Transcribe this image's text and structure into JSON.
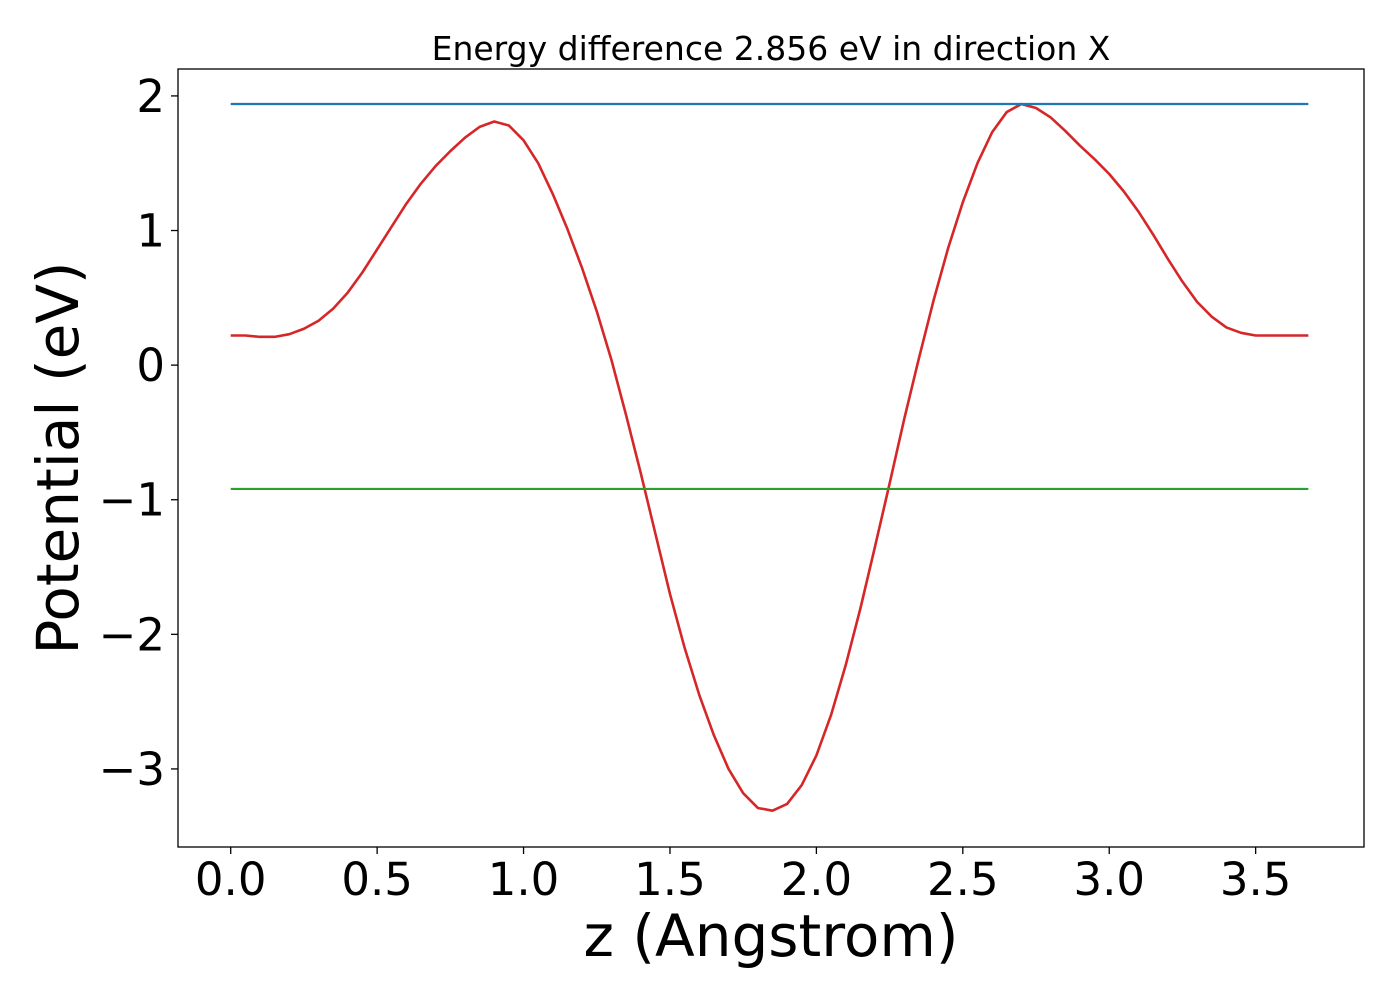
{
  "chart_data": {
    "type": "line",
    "title": "Energy difference 2.856 eV in direction X",
    "xlabel": "z (Angstrom)",
    "ylabel": "Potential (eV)",
    "xlim": [
      -0.18,
      3.87
    ],
    "ylim": [
      -3.58,
      2.2
    ],
    "xticks": [
      {
        "value": 0.0,
        "label": "0.0"
      },
      {
        "value": 0.5,
        "label": "0.5"
      },
      {
        "value": 1.0,
        "label": "1.0"
      },
      {
        "value": 1.5,
        "label": "1.5"
      },
      {
        "value": 2.0,
        "label": "2.0"
      },
      {
        "value": 2.5,
        "label": "2.5"
      },
      {
        "value": 3.0,
        "label": "3.0"
      },
      {
        "value": 3.5,
        "label": "3.5"
      }
    ],
    "yticks": [
      {
        "value": 2,
        "label": "2"
      },
      {
        "value": 1,
        "label": "1"
      },
      {
        "value": 0,
        "label": "0"
      },
      {
        "value": -1,
        "label": "−1"
      },
      {
        "value": -2,
        "label": "−2"
      },
      {
        "value": -3,
        "label": "−3"
      }
    ],
    "grid": false,
    "series": [
      {
        "color": "#d62728",
        "x": [
          0.0,
          0.05,
          0.1,
          0.15,
          0.2,
          0.25,
          0.3,
          0.35,
          0.4,
          0.45,
          0.5,
          0.55,
          0.6,
          0.65,
          0.7,
          0.75,
          0.8,
          0.85,
          0.9,
          0.95,
          1.0,
          1.05,
          1.1,
          1.15,
          1.2,
          1.25,
          1.3,
          1.35,
          1.4,
          1.45,
          1.5,
          1.55,
          1.6,
          1.65,
          1.7,
          1.75,
          1.8,
          1.85,
          1.9,
          1.95,
          2.0,
          2.05,
          2.1,
          2.15,
          2.2,
          2.25,
          2.3,
          2.35,
          2.4,
          2.45,
          2.5,
          2.55,
          2.6,
          2.65,
          2.7,
          2.75,
          2.8,
          2.85,
          2.9,
          2.95,
          3.0,
          3.05,
          3.1,
          3.15,
          3.2,
          3.25,
          3.3,
          3.35,
          3.4,
          3.45,
          3.5,
          3.55,
          3.6,
          3.65,
          3.68
        ],
        "y": [
          0.22,
          0.22,
          0.21,
          0.21,
          0.23,
          0.27,
          0.33,
          0.42,
          0.54,
          0.69,
          0.86,
          1.03,
          1.2,
          1.35,
          1.48,
          1.59,
          1.69,
          1.77,
          1.81,
          1.78,
          1.67,
          1.5,
          1.27,
          1.01,
          0.72,
          0.4,
          0.04,
          -0.37,
          -0.8,
          -1.25,
          -1.7,
          -2.1,
          -2.45,
          -2.75,
          -3.0,
          -3.18,
          -3.29,
          -3.31,
          -3.26,
          -3.12,
          -2.9,
          -2.6,
          -2.23,
          -1.81,
          -1.35,
          -0.88,
          -0.4,
          0.05,
          0.48,
          0.87,
          1.21,
          1.5,
          1.73,
          1.88,
          1.94,
          1.91,
          1.84,
          1.74,
          1.63,
          1.53,
          1.42,
          1.29,
          1.14,
          0.97,
          0.79,
          0.62,
          0.47,
          0.36,
          0.28,
          0.24,
          0.22,
          0.22,
          0.22,
          0.22,
          0.22
        ]
      },
      {
        "color": "#1f77b4",
        "x": [
          0.0,
          3.68
        ],
        "y": [
          1.94,
          1.94
        ]
      },
      {
        "color": "#2ca02c",
        "x": [
          0.0,
          3.68
        ],
        "y": [
          -0.92,
          -0.92
        ]
      }
    ]
  }
}
